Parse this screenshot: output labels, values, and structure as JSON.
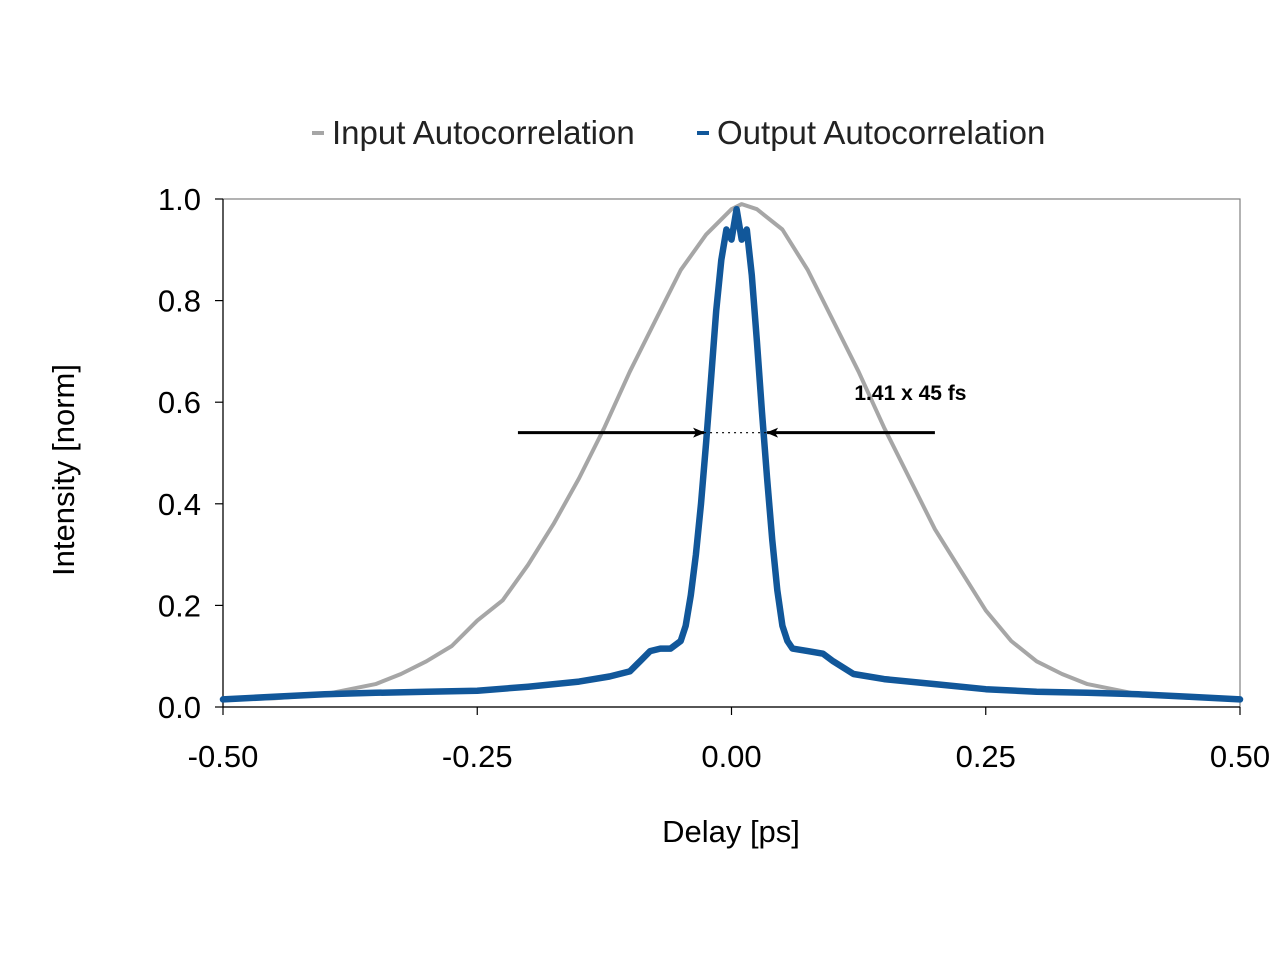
{
  "chart_data": {
    "type": "line",
    "xlabel": "Delay [ps]",
    "ylabel": "Intensity [norm]",
    "xlim": [
      -0.5,
      0.5
    ],
    "ylim": [
      0,
      1.0
    ],
    "xticks": [
      -0.5,
      -0.25,
      0.0,
      0.25,
      0.5
    ],
    "xtick_labels": [
      "-0.50",
      "-0.25",
      "0.00",
      "0.25",
      "0.50"
    ],
    "yticks": [
      0.0,
      0.2,
      0.4,
      0.6,
      0.8,
      1.0
    ],
    "ytick_labels": [
      "0.0",
      "0.2",
      "0.4",
      "0.6",
      "0.8",
      "1.0"
    ],
    "grid": false,
    "legend_position": "top",
    "series": [
      {
        "name": "Input Autocorrelation",
        "color": "#a6a6a6",
        "points": [
          [
            -0.5,
            0.015
          ],
          [
            -0.45,
            0.017
          ],
          [
            -0.4,
            0.025
          ],
          [
            -0.375,
            0.035
          ],
          [
            -0.35,
            0.045
          ],
          [
            -0.325,
            0.065
          ],
          [
            -0.3,
            0.09
          ],
          [
            -0.275,
            0.12
          ],
          [
            -0.25,
            0.17
          ],
          [
            -0.225,
            0.21
          ],
          [
            -0.2,
            0.28
          ],
          [
            -0.175,
            0.36
          ],
          [
            -0.15,
            0.45
          ],
          [
            -0.125,
            0.55
          ],
          [
            -0.1,
            0.66
          ],
          [
            -0.075,
            0.76
          ],
          [
            -0.05,
            0.86
          ],
          [
            -0.025,
            0.93
          ],
          [
            0.0,
            0.98
          ],
          [
            0.01,
            0.99
          ],
          [
            0.025,
            0.98
          ],
          [
            0.05,
            0.94
          ],
          [
            0.075,
            0.86
          ],
          [
            0.1,
            0.76
          ],
          [
            0.125,
            0.66
          ],
          [
            0.15,
            0.55
          ],
          [
            0.175,
            0.45
          ],
          [
            0.2,
            0.35
          ],
          [
            0.225,
            0.27
          ],
          [
            0.25,
            0.19
          ],
          [
            0.275,
            0.13
          ],
          [
            0.3,
            0.09
          ],
          [
            0.325,
            0.065
          ],
          [
            0.35,
            0.045
          ],
          [
            0.375,
            0.035
          ],
          [
            0.4,
            0.025
          ],
          [
            0.45,
            0.018
          ],
          [
            0.5,
            0.017
          ]
        ]
      },
      {
        "name": "Output Autocorrelation",
        "color": "#11579a",
        "points": [
          [
            -0.5,
            0.015
          ],
          [
            -0.45,
            0.02
          ],
          [
            -0.4,
            0.025
          ],
          [
            -0.35,
            0.028
          ],
          [
            -0.3,
            0.03
          ],
          [
            -0.25,
            0.032
          ],
          [
            -0.2,
            0.04
          ],
          [
            -0.15,
            0.05
          ],
          [
            -0.12,
            0.06
          ],
          [
            -0.1,
            0.07
          ],
          [
            -0.09,
            0.09
          ],
          [
            -0.08,
            0.11
          ],
          [
            -0.07,
            0.115
          ],
          [
            -0.06,
            0.115
          ],
          [
            -0.05,
            0.13
          ],
          [
            -0.045,
            0.16
          ],
          [
            -0.04,
            0.22
          ],
          [
            -0.035,
            0.3
          ],
          [
            -0.03,
            0.4
          ],
          [
            -0.025,
            0.52
          ],
          [
            -0.02,
            0.65
          ],
          [
            -0.015,
            0.78
          ],
          [
            -0.01,
            0.88
          ],
          [
            -0.005,
            0.94
          ],
          [
            0.0,
            0.92
          ],
          [
            0.005,
            0.98
          ],
          [
            0.01,
            0.92
          ],
          [
            0.015,
            0.94
          ],
          [
            0.02,
            0.85
          ],
          [
            0.025,
            0.72
          ],
          [
            0.03,
            0.58
          ],
          [
            0.035,
            0.45
          ],
          [
            0.04,
            0.33
          ],
          [
            0.045,
            0.23
          ],
          [
            0.05,
            0.16
          ],
          [
            0.055,
            0.13
          ],
          [
            0.06,
            0.115
          ],
          [
            0.075,
            0.11
          ],
          [
            0.09,
            0.105
          ],
          [
            0.1,
            0.09
          ],
          [
            0.12,
            0.065
          ],
          [
            0.15,
            0.055
          ],
          [
            0.2,
            0.045
          ],
          [
            0.25,
            0.035
          ],
          [
            0.3,
            0.03
          ],
          [
            0.35,
            0.028
          ],
          [
            0.4,
            0.025
          ],
          [
            0.45,
            0.02
          ],
          [
            0.5,
            0.015
          ]
        ]
      }
    ],
    "annotations": [
      {
        "text": "1.41 x 45 fs",
        "text_anchor": [
          0.17,
          0.62
        ],
        "level": 0.54,
        "left_arrow": {
          "from": -0.21,
          "to": -0.027
        },
        "right_arrow": {
          "from": 0.2,
          "to": 0.035
        }
      }
    ]
  }
}
